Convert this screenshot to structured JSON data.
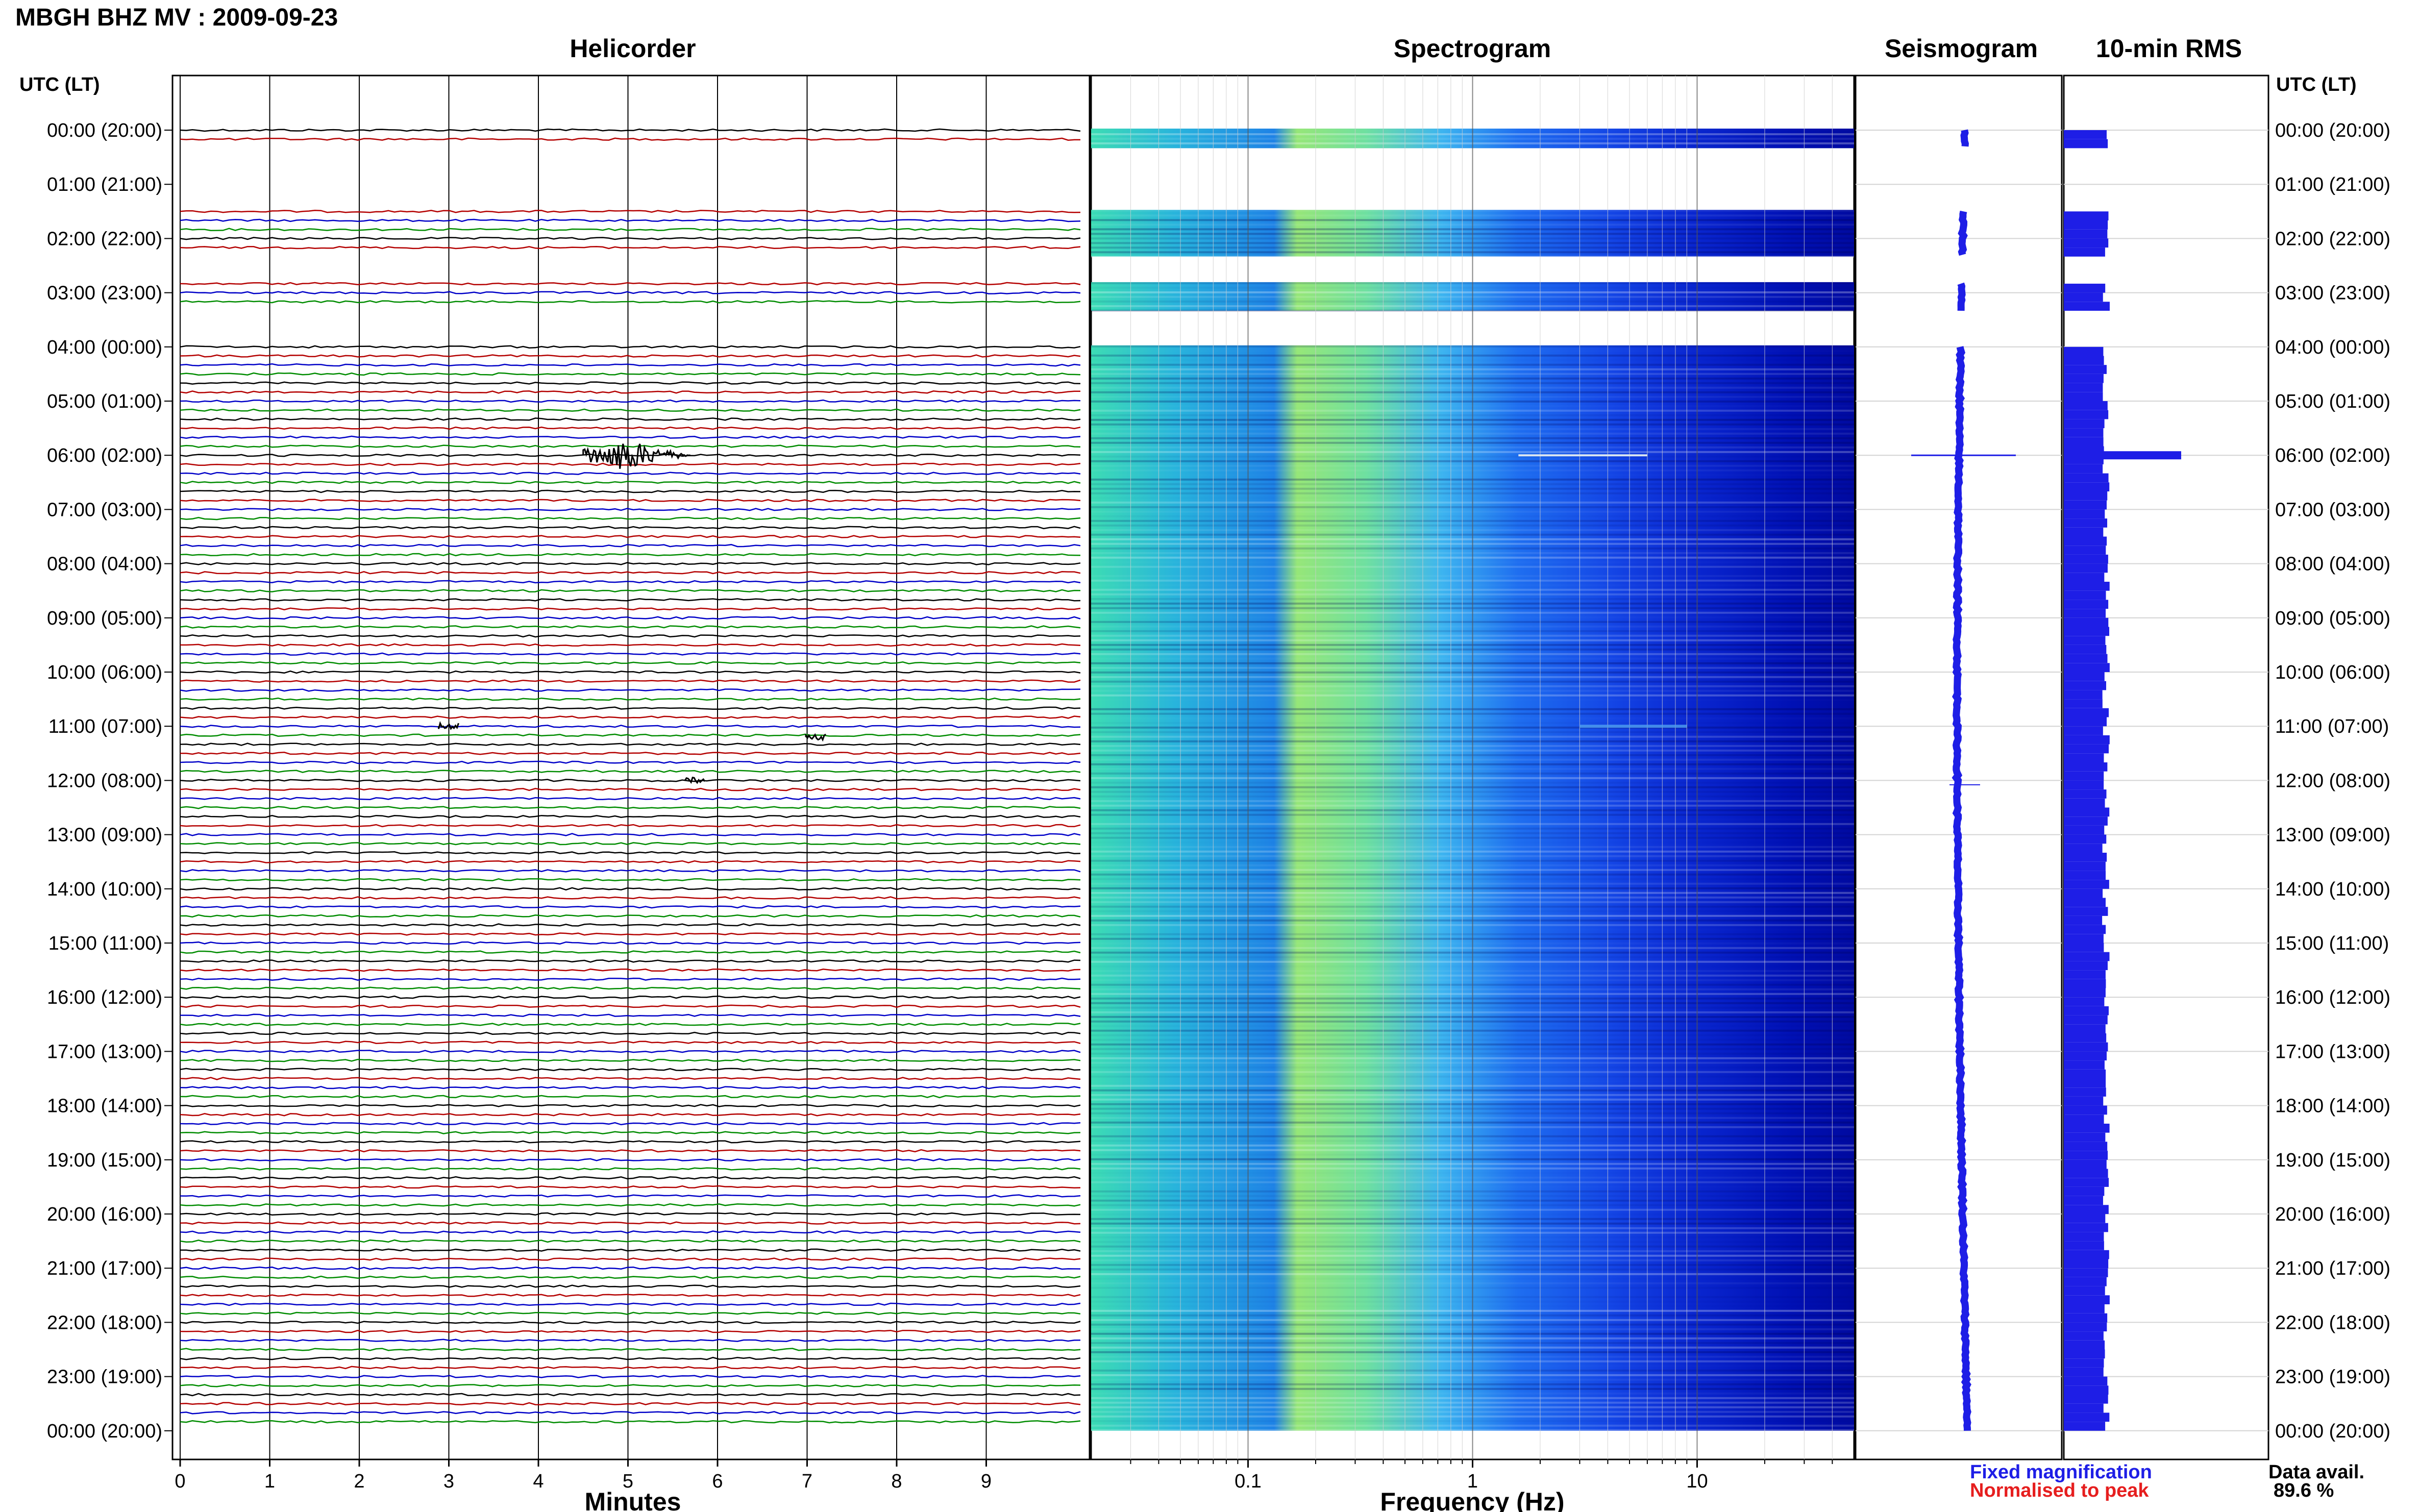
{
  "figure": {
    "title": "MBGH BHZ MV : 2009-09-23",
    "panels": {
      "helicorder": "Helicorder",
      "spectrogram": "Spectrogram",
      "seismogram": "Seismogram",
      "rms": "10-min RMS"
    },
    "left_axis_header": "UTC (LT)",
    "right_axis_header": "UTC (LT)",
    "xlabel_helicorder": "Minutes",
    "xlabel_spectrogram": "Frequency (Hz)",
    "legend": {
      "fixed": "Fixed magnification",
      "normalised": "Normalised to peak",
      "fixed_color": "#1e1ee6",
      "normalised_color": "#e61e1e"
    },
    "data_avail_label": "Data avail.",
    "data_avail_value": "89.6 %"
  },
  "chart_data": {
    "type": "helicorder",
    "time_labels": [
      "00:00 (20:00)",
      "01:00 (21:00)",
      "02:00 (22:00)",
      "03:00 (23:00)",
      "04:00 (00:00)",
      "05:00 (01:00)",
      "06:00 (02:00)",
      "07:00 (03:00)",
      "08:00 (04:00)",
      "09:00 (05:00)",
      "10:00 (06:00)",
      "11:00 (07:00)",
      "12:00 (08:00)",
      "13:00 (09:00)",
      "14:00 (10:00)",
      "15:00 (11:00)",
      "16:00 (12:00)",
      "17:00 (13:00)",
      "18:00 (14:00)",
      "19:00 (15:00)",
      "20:00 (16:00)",
      "21:00 (17:00)",
      "22:00 (18:00)",
      "23:00 (19:00)",
      "00:00 (20:00)"
    ],
    "helicorder": {
      "xlabel": "Minutes",
      "xticks": [
        "0",
        "1",
        "2",
        "3",
        "4",
        "5",
        "6",
        "7",
        "8",
        "9"
      ],
      "xlim": [
        0,
        10
      ],
      "traces_per_hour": 6,
      "trace_colors": [
        "#000000",
        "#b40000",
        "#0000c8",
        "#008c00"
      ],
      "events": [
        {
          "hour": 6.0,
          "minute_start": 4.5,
          "minute_end": 5.7,
          "peak_minute": 4.85,
          "amplitude": "large"
        },
        {
          "hour": 11.2,
          "minute": 7.1,
          "amplitude": "small"
        },
        {
          "hour": 11.0,
          "minute": 3.0,
          "amplitude": "small"
        },
        {
          "hour": 12.0,
          "minute": 5.75,
          "amplitude": "small"
        }
      ],
      "gaps": [
        {
          "hour_start": 0.25,
          "hour_end": 1.5
        },
        {
          "hour_start": 2.2,
          "hour_end": 2.7
        },
        {
          "hour_start": 3.3,
          "hour_end": 3.95
        }
      ]
    },
    "spectrogram": {
      "xlabel": "Frequency (Hz)",
      "xscale": "log",
      "xlim": [
        0.02,
        50
      ],
      "xticks": [
        "0.1",
        "1",
        "10"
      ],
      "colormap": "jet"
    },
    "seismogram": {
      "line_color": "#1e1ee6",
      "spike_hour": 6.0
    },
    "rms": {
      "bar_color": "#1e1ee6",
      "interval_minutes": 10,
      "spike_hour": 6.0
    }
  }
}
